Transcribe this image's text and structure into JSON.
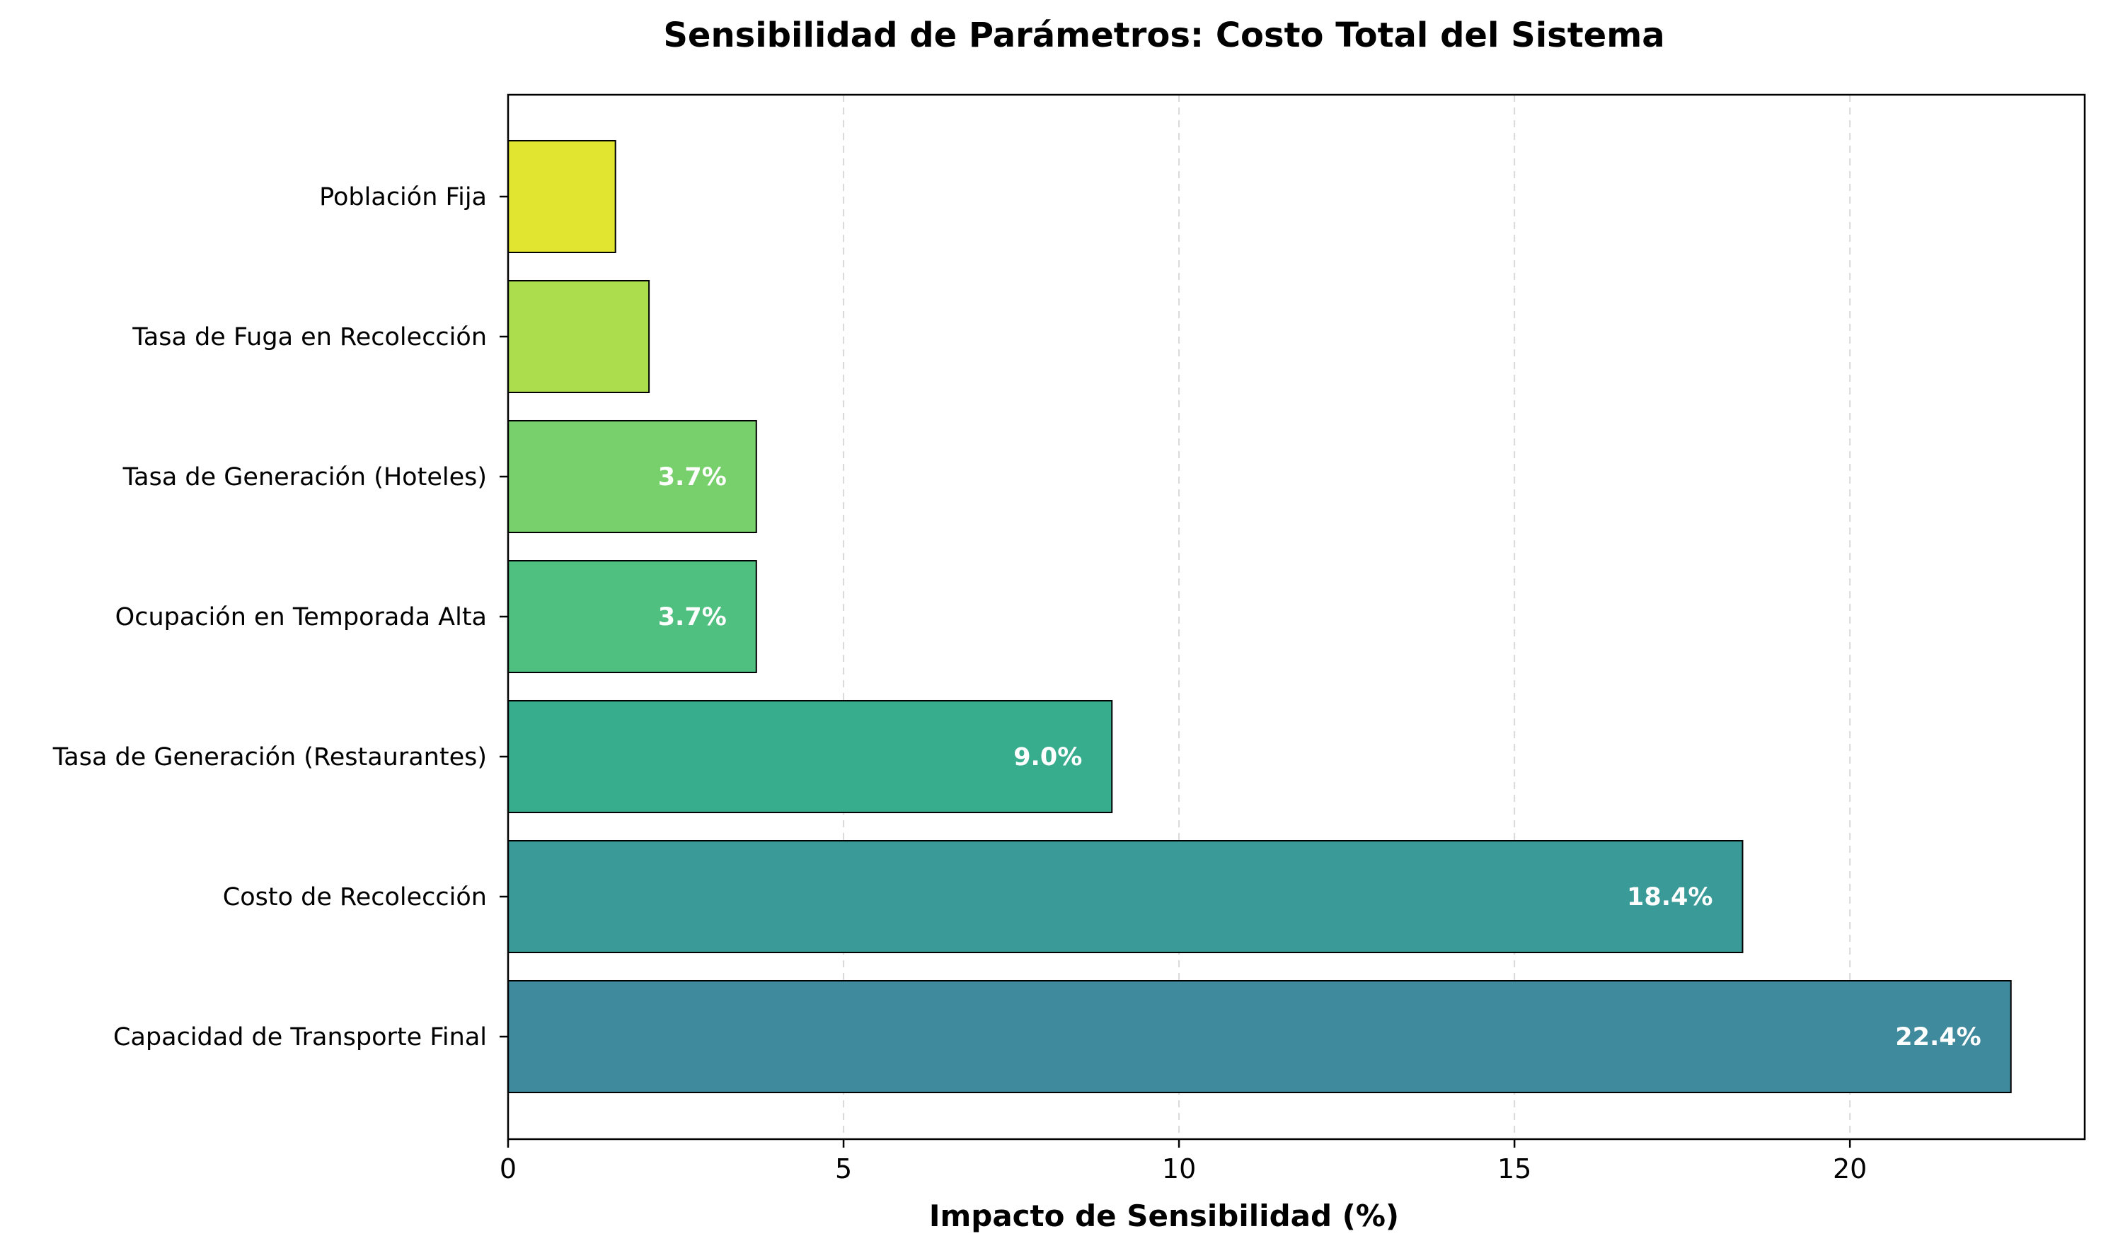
{
  "chart_data": {
    "type": "bar",
    "orientation": "horizontal",
    "title": "Sensibilidad de Parámetros: Costo Total del Sistema",
    "xlabel": "Impacto de Sensibilidad (%)",
    "ylabel": "",
    "xlim": [
      0,
      23.5
    ],
    "xticks": [
      0,
      5,
      10,
      15,
      20
    ],
    "grid": "x-dashed",
    "categories": [
      "Capacidad de Transporte Final",
      "Costo de Recolección",
      "Tasa de Generación (Restaurantes)",
      "Ocupación en Temporada Alta",
      "Tasa de Generación (Hoteles)",
      "Tasa de Fuga en Recolección",
      "Población Fija"
    ],
    "values": [
      22.4,
      18.4,
      9.0,
      3.7,
      3.7,
      2.1,
      1.6
    ],
    "data_labels": [
      "22.4%",
      "18.4%",
      "9.0%",
      "3.7%",
      "3.7%",
      "",
      ""
    ],
    "colors": [
      "#3f8a9c",
      "#3a9a98",
      "#37ad8e",
      "#4fc07f",
      "#77d06b",
      "#acdd4c",
      "#e1e52f"
    ]
  }
}
